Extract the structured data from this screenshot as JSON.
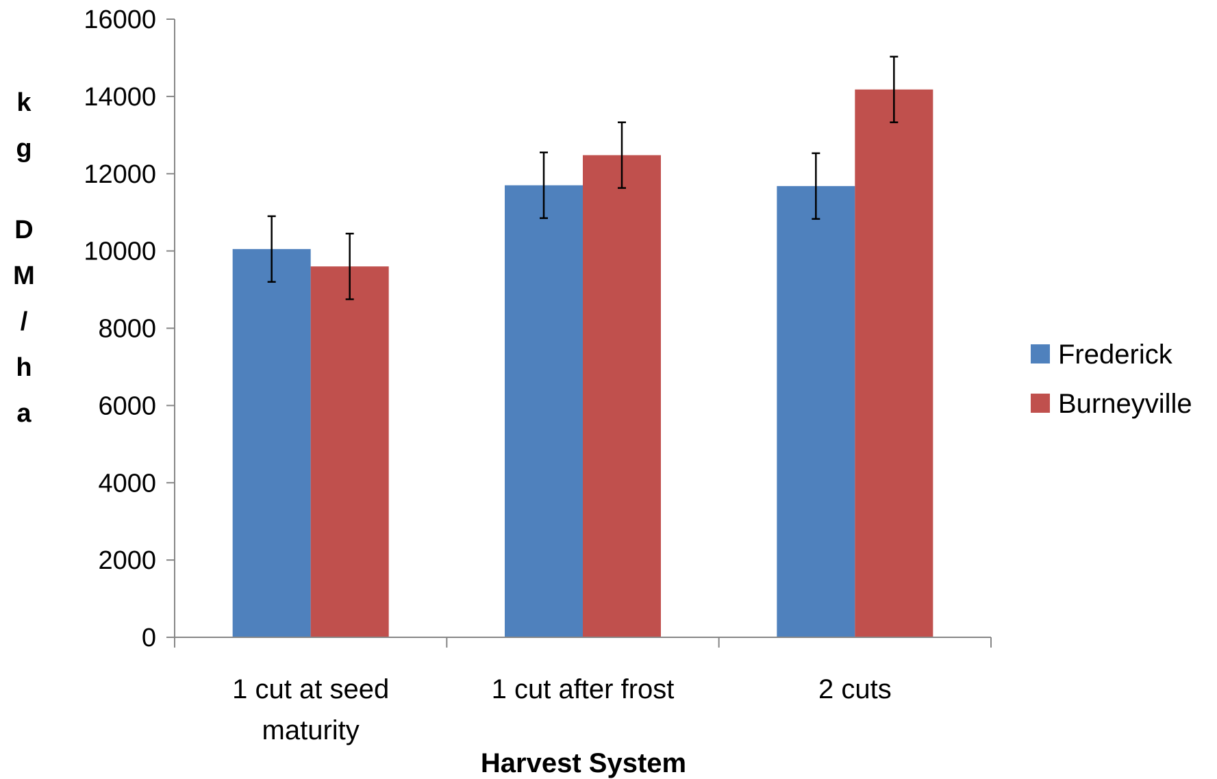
{
  "chart_data": {
    "type": "bar",
    "title": "",
    "xlabel": "Harvest System",
    "ylabel": "kg DM/ha",
    "ylim": [
      0,
      16000
    ],
    "yticks": [
      0,
      2000,
      4000,
      6000,
      8000,
      10000,
      12000,
      14000,
      16000
    ],
    "grid": false,
    "legend_position": "right",
    "categories": [
      "1 cut at seed maturity",
      "1 cut after frost",
      "2 cuts"
    ],
    "category_lines": [
      [
        "1 cut at seed",
        "maturity"
      ],
      [
        "1 cut after frost"
      ],
      [
        "2 cuts"
      ]
    ],
    "series": [
      {
        "name": "Frederick",
        "color": "#4F81BD",
        "values": [
          10050,
          11700,
          11680
        ],
        "errors": [
          850,
          850,
          850
        ]
      },
      {
        "name": "Burneyville",
        "color": "#C0504D",
        "values": [
          9600,
          12480,
          14180
        ],
        "errors": [
          850,
          850,
          850
        ]
      }
    ]
  }
}
